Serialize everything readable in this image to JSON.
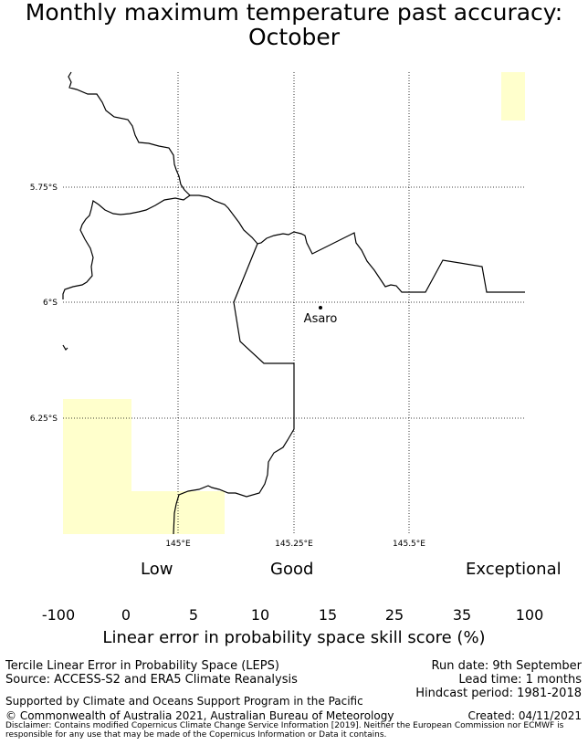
{
  "title": {
    "line1": "Monthly maximum temperature past accuracy:",
    "line2": "October"
  },
  "map": {
    "lat_labels": [
      "5.75°S",
      "6°S",
      "6.25°S"
    ],
    "lon_labels": [
      "145°E",
      "145.25°E",
      "145.5°E"
    ],
    "place": "Asaro",
    "colors": {
      "coastline": "#000000",
      "gridline": "#000000",
      "low_cell": "#ffffcc"
    },
    "skill_cells": [
      "0 to 5",
      "0 to 5",
      "0 to 5"
    ]
  },
  "colorbar": {
    "categories": {
      "low": "Low",
      "good": "Good",
      "exceptional": "Exceptional"
    },
    "ticks": [
      "-100",
      "0",
      "5",
      "10",
      "15",
      "25",
      "35",
      "100"
    ],
    "colors": [
      "#ffffff",
      "#ffffcc",
      "#d9f0a3",
      "#addd8e",
      "#78c679",
      "#41ab5d",
      "#238443"
    ],
    "title": "Linear error in probability space skill score (%)"
  },
  "footer": {
    "method": "Tercile Linear Error in Probability Space (LEPS)",
    "source": "Source: ACCESS-S2 and ERA5 Climate Reanalysis",
    "support": "Supported by Climate and Oceans Support Program in the Pacific",
    "copyright": "© Commonwealth of Australia 2021, Australian Bureau of Meteorology",
    "disclaimer": "Disclaimer: Contains modified Copernicus Climate Change Service Information [2019]. Neither the European Commission nor ECMWF is responsible for any use that may be made of the Copernicus Information or Data it contains.",
    "run_date": "Run date: 9th September",
    "lead_time": "Lead time: 1 months",
    "hindcast": "Hindcast period: 1981-2018",
    "created": "Created: 04/11/2021"
  }
}
